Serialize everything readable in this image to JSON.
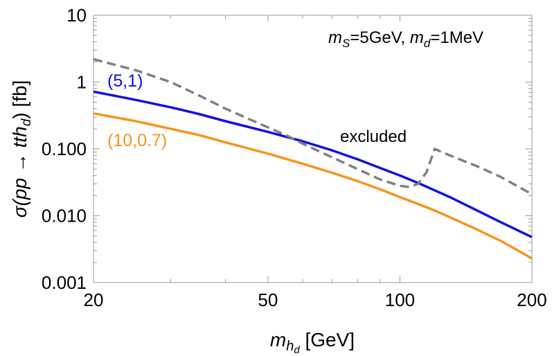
{
  "chart_data": {
    "type": "line",
    "x_scale": "log",
    "y_scale": "log",
    "xlim": [
      20,
      200
    ],
    "ylim": [
      0.001,
      10
    ],
    "x_ticks": [
      {
        "v": 20,
        "label": "20"
      },
      {
        "v": 50,
        "label": "50"
      },
      {
        "v": 100,
        "label": "100"
      },
      {
        "v": 200,
        "label": "200"
      }
    ],
    "y_ticks": [
      {
        "v": 0.001,
        "label": "0.001"
      },
      {
        "v": 0.01,
        "label": "0.010"
      },
      {
        "v": 0.1,
        "label": "0.100"
      },
      {
        "v": 1,
        "label": "1"
      },
      {
        "v": 10,
        "label": "10"
      }
    ],
    "xlabel": {
      "main": "m",
      "sub1": "h",
      "sub2": "d",
      "unit": " [GeV]"
    },
    "ylabel": {
      "pre": "σ(",
      "proc": "pp → tth",
      "sub": "d",
      "post": ") [fb]"
    },
    "note": {
      "part1_var": "m",
      "part1_sub": "S",
      "part1_val": "=5GeV, ",
      "part2_var": "m",
      "part2_sub": "d",
      "part2_val": "=1MeV"
    },
    "annotation": "excluded",
    "series": [
      {
        "name": "(5,1)",
        "color": "#1010e0",
        "style": "solid",
        "x": [
          20,
          25,
          30,
          35,
          40,
          50,
          60,
          70,
          80,
          90,
          100,
          110,
          120,
          130,
          150,
          170,
          200
        ],
        "y": [
          0.72,
          0.54,
          0.42,
          0.33,
          0.26,
          0.18,
          0.13,
          0.095,
          0.07,
          0.052,
          0.04,
          0.031,
          0.024,
          0.019,
          0.012,
          0.008,
          0.0048
        ]
      },
      {
        "name": "(10,0.7)",
        "color": "#f7941d",
        "style": "solid",
        "x": [
          20,
          25,
          30,
          35,
          40,
          50,
          60,
          70,
          80,
          90,
          100,
          110,
          120,
          130,
          150,
          170,
          200
        ],
        "y": [
          0.34,
          0.26,
          0.2,
          0.16,
          0.125,
          0.085,
          0.06,
          0.044,
          0.033,
          0.025,
          0.019,
          0.015,
          0.012,
          0.0095,
          0.0062,
          0.0042,
          0.0023
        ]
      },
      {
        "name": "excluded",
        "color": "#808080",
        "style": "dashed",
        "x": [
          20,
          25,
          30,
          35,
          40,
          50,
          55,
          60,
          70,
          80,
          90,
          100,
          105,
          110,
          115,
          120,
          130,
          150,
          170,
          200
        ],
        "y": [
          2.2,
          1.5,
          1.0,
          0.62,
          0.4,
          0.21,
          0.16,
          0.12,
          0.075,
          0.05,
          0.035,
          0.028,
          0.027,
          0.03,
          0.045,
          0.1,
          0.08,
          0.055,
          0.038,
          0.021
        ]
      }
    ],
    "legend": "none",
    "grid": false
  }
}
